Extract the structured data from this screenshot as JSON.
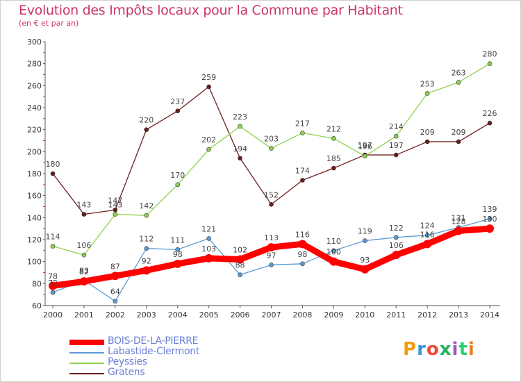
{
  "header": {
    "title": "Evolution des Impôts locaux pour la Commune par Habitant",
    "subtitle": "(en € et par an)"
  },
  "brand": {
    "logo_text": "Proxiti",
    "colors": [
      "#f39c12",
      "#3498db",
      "#e74c3c",
      "#27ae60",
      "#9b59b6",
      "#2ecc71",
      "#e67e22"
    ]
  },
  "chart_data": {
    "type": "line",
    "title": "Evolution des Impôts locaux pour la Commune par Habitant",
    "subtitle": "(en € et par an)",
    "xlabel": "",
    "ylabel": "",
    "x": [
      2000,
      2001,
      2002,
      2003,
      2004,
      2005,
      2006,
      2007,
      2008,
      2009,
      2010,
      2011,
      2012,
      2013,
      2014
    ],
    "ylim": [
      60,
      300
    ],
    "yticks": [
      60,
      80,
      100,
      120,
      140,
      160,
      180,
      200,
      220,
      240,
      260,
      280,
      300
    ],
    "grid": false,
    "legend_position": "bottom-left",
    "series": [
      {
        "name": "BOIS-DE-LA-PIERRE",
        "color": "#ff0000",
        "values": [
          78,
          82,
          87,
          92,
          98,
          103,
          102,
          113,
          116,
          100,
          93,
          106,
          116,
          128,
          130
        ]
      },
      {
        "name": "Labastide-Clermont",
        "color": "#5b9bd5",
        "values": [
          72,
          83,
          64,
          112,
          111,
          121,
          88,
          97,
          98,
          110,
          119,
          122,
          124,
          131,
          139
        ]
      },
      {
        "name": "Peyssies",
        "color": "#8fd14f",
        "values": [
          114,
          106,
          143,
          142,
          170,
          202,
          223,
          203,
          217,
          212,
          196,
          214,
          253,
          263,
          280
        ]
      },
      {
        "name": "Gratens",
        "color": "#6b1c1c",
        "values": [
          180,
          143,
          147,
          220,
          237,
          259,
          194,
          152,
          174,
          185,
          197,
          197,
          209,
          209,
          226
        ]
      }
    ]
  }
}
